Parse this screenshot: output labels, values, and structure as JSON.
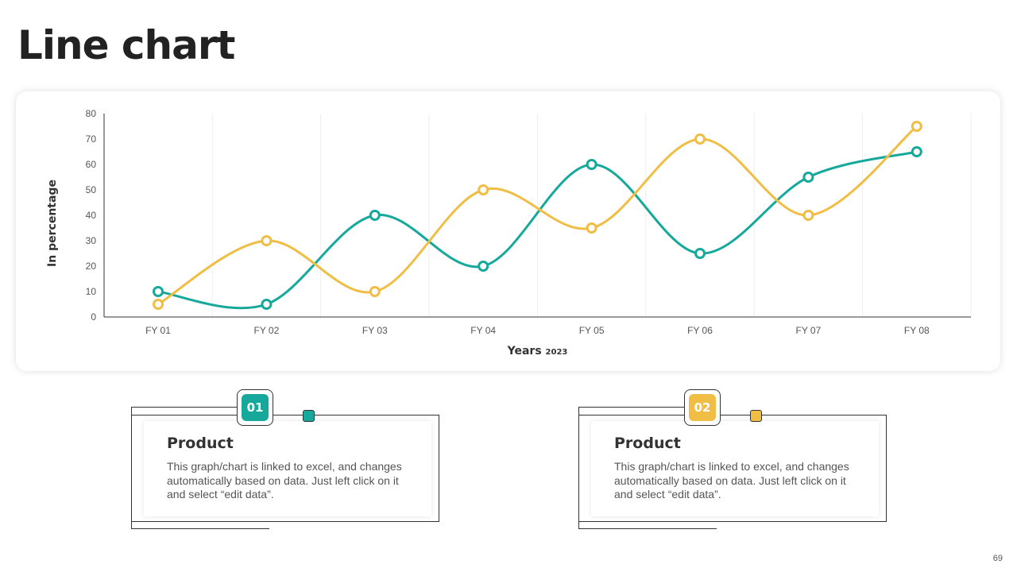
{
  "slide": {
    "title": "Line chart",
    "page_number": "69"
  },
  "colors": {
    "teal": "#16a99b",
    "yellow": "#f0bd45",
    "axis": "#333333",
    "gridline": "#eeeeee"
  },
  "chart_data": {
    "type": "line",
    "categories": [
      "FY 01",
      "FY 02",
      "FY 03",
      "FY 04",
      "FY 05",
      "FY 06",
      "FY 07",
      "FY 08"
    ],
    "series": [
      {
        "color": "#16a99b",
        "values": [
          10,
          5,
          40,
          20,
          60,
          25,
          55,
          65
        ]
      },
      {
        "color": "#f0bd45",
        "values": [
          5,
          30,
          10,
          50,
          35,
          70,
          40,
          75
        ]
      }
    ],
    "ylabel": "In percentage",
    "xlabel": "Years",
    "xlabel_suffix": "2023",
    "ylim": [
      0,
      80
    ],
    "yticks": [
      0,
      10,
      20,
      30,
      40,
      50,
      60,
      70,
      80
    ],
    "grid": "vertical",
    "legend": "none",
    "smooth": true
  },
  "cards": [
    {
      "badge": "01",
      "badge_color": "#16a99b",
      "marker_color": "#16a99b",
      "heading": "Product",
      "text": "This graph/chart is linked to excel, and changes automatically based on data. Just left click on it and select “edit data”."
    },
    {
      "badge": "02",
      "badge_color": "#f0bd45",
      "marker_color": "#f0bd45",
      "heading": "Product",
      "text": "This graph/chart is linked to excel, and changes automatically based on data. Just left click on it and select “edit data”."
    }
  ]
}
